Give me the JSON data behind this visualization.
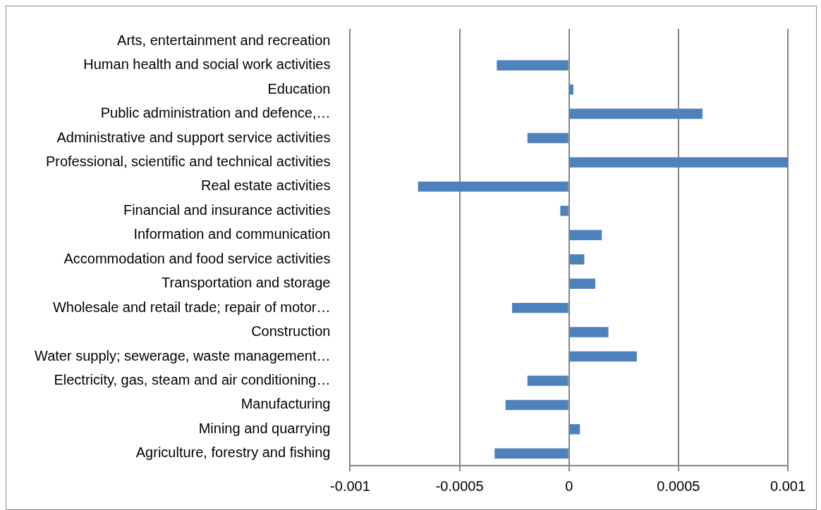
{
  "chart_data": {
    "type": "bar",
    "orientation": "horizontal",
    "categories": [
      "Arts, entertainment and recreation",
      "Human health and social work activities",
      "Education",
      "Public administration and defence,…",
      "Administrative and support service activities",
      "Professional, scientific and technical activities",
      "Real estate activities",
      "Financial and insurance activities",
      "Information and communication",
      "Accommodation and food service activities",
      "Transportation and storage",
      "Wholesale and retail trade; repair of motor…",
      "Construction",
      "Water supply; sewerage, waste management…",
      "Electricity, gas, steam and air conditioning…",
      "Manufacturing",
      "Mining and quarrying",
      "Agriculture, forestry and fishing"
    ],
    "values": [
      0,
      -0.00033,
      2e-05,
      0.00061,
      -0.00019,
      0.001,
      -0.00069,
      -4e-05,
      0.00015,
      7e-05,
      0.00012,
      -0.00026,
      0.00018,
      0.00031,
      -0.00019,
      -0.00029,
      5e-05,
      -0.00034
    ],
    "color": "#4f81bd",
    "xlim": [
      -0.001,
      0.001
    ],
    "xticks": [
      -0.001,
      -0.0005,
      0,
      0.0005,
      0.001
    ],
    "grid": "x",
    "legend": false
  }
}
